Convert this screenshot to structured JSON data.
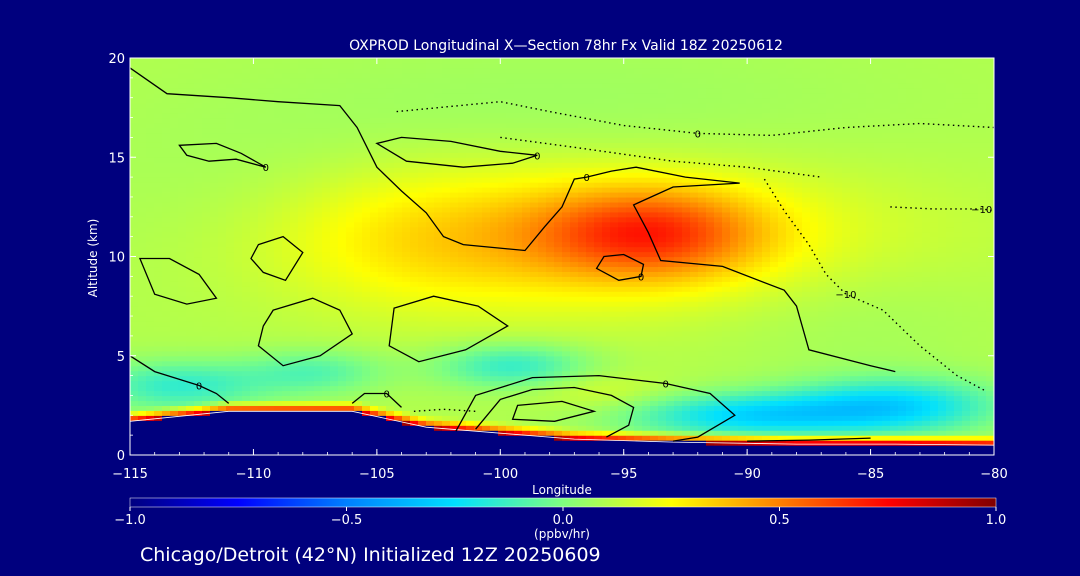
{
  "chart_data": {
    "type": "heatmap",
    "title": "OXPROD Longitudinal X—Section 78hr  Fx Valid 18Z 20250612",
    "xlabel": "Longitude",
    "ylabel": "Altitude (km)",
    "xlim": [
      -115,
      -80
    ],
    "ylim": [
      0,
      20
    ],
    "x_ticks": [
      -115,
      -110,
      -105,
      -100,
      -95,
      -90,
      -85,
      -80
    ],
    "x_tick_labels": [
      "−115",
      "−110",
      "−105",
      "−100",
      "−95",
      "−90",
      "−85",
      "−80"
    ],
    "y_ticks": [
      0,
      5,
      10,
      15,
      20
    ],
    "y_tick_labels": [
      "0",
      "5",
      "10",
      "15",
      "20"
    ],
    "colorbar": {
      "range": [
        -1.0,
        1.0
      ],
      "ticks": [
        -1.0,
        -0.5,
        0.0,
        0.5,
        1.0
      ],
      "tick_labels": [
        "−1.0",
        "−0.5",
        "0.0",
        "0.5",
        "1.0"
      ],
      "units": "(ppbv/hr)",
      "colormap": [
        "#00007f",
        "#0000ff",
        "#0080ff",
        "#00e0ff",
        "#7fff7f",
        "#ffff00",
        "#ff8000",
        "#ff0000",
        "#800000"
      ]
    },
    "background_value": 0.1,
    "value_blobs": [
      {
        "lon": -94.0,
        "alt": 11.2,
        "slon": 3.2,
        "salt": 1.6,
        "amp": 0.42
      },
      {
        "lon": -96.5,
        "alt": 11.0,
        "slon": 8.5,
        "salt": 2.6,
        "amp": 0.2
      },
      {
        "lon": -103.0,
        "alt": 11.0,
        "slon": 4.0,
        "salt": 2.5,
        "amp": 0.12
      },
      {
        "lon": -108.0,
        "alt": 12.5,
        "slon": 7.0,
        "salt": 3.0,
        "amp": -0.04
      },
      {
        "lon": -97.0,
        "alt": 17.5,
        "slon": 10.0,
        "salt": 2.5,
        "amp": -0.04
      },
      {
        "lon": -90.0,
        "alt": 2.0,
        "slon": 3.5,
        "salt": 0.8,
        "amp": -0.35
      },
      {
        "lon": -84.0,
        "alt": 2.5,
        "slon": 3.0,
        "salt": 1.0,
        "amp": -0.35
      },
      {
        "lon": -99.5,
        "alt": 4.5,
        "slon": 2.2,
        "salt": 0.8,
        "amp": -0.25
      },
      {
        "lon": -113.0,
        "alt": 3.5,
        "slon": 2.5,
        "salt": 0.9,
        "amp": -0.25
      },
      {
        "lon": -107.5,
        "alt": 4.2,
        "slon": 2.0,
        "salt": 0.8,
        "amp": -0.18
      },
      {
        "lon": -96.0,
        "alt": 3.2,
        "slon": 2.0,
        "salt": 0.7,
        "amp": 0.08
      },
      {
        "lon": -86.0,
        "alt": 7.5,
        "slon": 4.0,
        "salt": 2.5,
        "amp": -0.04
      }
    ],
    "surface_layer_value": 0.95,
    "terrain_km": [
      [
        -115,
        1.7
      ],
      [
        -111,
        2.2
      ],
      [
        -106,
        2.2
      ],
      [
        -103,
        1.4
      ],
      [
        -100,
        1.1
      ],
      [
        -97,
        0.8
      ],
      [
        -93,
        0.65
      ],
      [
        -88,
        0.55
      ],
      [
        -84,
        0.55
      ],
      [
        -80,
        0.5
      ]
    ],
    "contours": [
      {
        "label": "0",
        "style": "solid",
        "closed": false,
        "points": [
          [
            -115,
            19.5
          ],
          [
            -113.5,
            18.2
          ],
          [
            -111,
            18
          ],
          [
            -109,
            17.8
          ],
          [
            -106.5,
            17.6
          ],
          [
            -105.8,
            16.5
          ],
          [
            -105,
            14.5
          ],
          [
            -104,
            13.3
          ],
          [
            -103,
            12.2
          ],
          [
            -102.3,
            11
          ],
          [
            -101.5,
            10.6
          ],
          [
            -99,
            10.3
          ],
          [
            -98.2,
            11.5
          ],
          [
            -97.5,
            12.5
          ],
          [
            -97,
            13.9
          ],
          [
            -96.5,
            14
          ],
          [
            -95.5,
            14.3
          ],
          [
            -94.5,
            14.5
          ],
          [
            -92.5,
            14
          ],
          [
            -90.3,
            13.7
          ],
          [
            -93,
            13.5
          ],
          [
            -94.6,
            12.6
          ],
          [
            -94,
            11.2
          ],
          [
            -93.5,
            9.8
          ],
          [
            -91,
            9.5
          ],
          [
            -88.5,
            8.3
          ],
          [
            -88,
            7.5
          ],
          [
            -87.5,
            5.3
          ],
          [
            -85,
            4.5
          ],
          [
            -84,
            4.2
          ]
        ]
      },
      {
        "label": "0",
        "style": "solid",
        "closed": true,
        "points": [
          [
            -113,
            15.6
          ],
          [
            -111.5,
            15.7
          ],
          [
            -110.5,
            15.2
          ],
          [
            -109.5,
            14.5
          ],
          [
            -110.7,
            14.9
          ],
          [
            -111.8,
            14.8
          ],
          [
            -112.7,
            15.1
          ]
        ]
      },
      {
        "label": "0",
        "style": "solid",
        "closed": true,
        "points": [
          [
            -105,
            15.7
          ],
          [
            -104,
            16
          ],
          [
            -102,
            15.8
          ],
          [
            -100,
            15.3
          ],
          [
            -98.5,
            15.1
          ],
          [
            -99.5,
            14.7
          ],
          [
            -101.5,
            14.5
          ],
          [
            -103.8,
            14.8
          ]
        ]
      },
      {
        "label": "",
        "style": "solid",
        "closed": true,
        "points": [
          [
            -109.8,
            10.6
          ],
          [
            -108.8,
            11
          ],
          [
            -108,
            10.2
          ],
          [
            -108.7,
            8.8
          ],
          [
            -109.6,
            9.2
          ],
          [
            -110.1,
            9.9
          ]
        ]
      },
      {
        "label": "",
        "style": "solid",
        "closed": true,
        "points": [
          [
            -114.6,
            9.9
          ],
          [
            -114,
            8.1
          ],
          [
            -112.7,
            7.6
          ],
          [
            -111.5,
            7.9
          ],
          [
            -112.2,
            9.1
          ],
          [
            -113.4,
            9.9
          ]
        ]
      },
      {
        "label": "",
        "style": "solid",
        "closed": true,
        "points": [
          [
            -109.2,
            7.3
          ],
          [
            -107.6,
            7.9
          ],
          [
            -106.5,
            7.3
          ],
          [
            -106,
            6.1
          ],
          [
            -107.3,
            5
          ],
          [
            -108.8,
            4.5
          ],
          [
            -109.8,
            5.5
          ],
          [
            -109.6,
            6.5
          ]
        ]
      },
      {
        "label": "",
        "style": "solid",
        "closed": true,
        "points": [
          [
            -104.3,
            7.4
          ],
          [
            -102.7,
            8
          ],
          [
            -100.9,
            7.5
          ],
          [
            -99.7,
            6.5
          ],
          [
            -101.4,
            5.3
          ],
          [
            -103.3,
            4.7
          ],
          [
            -104.5,
            5.5
          ]
        ]
      },
      {
        "label": "0",
        "style": "solid",
        "closed": true,
        "points": [
          [
            -95.8,
            10
          ],
          [
            -95,
            10.1
          ],
          [
            -94.2,
            9.6
          ],
          [
            -94.3,
            9
          ],
          [
            -95.2,
            8.8
          ],
          [
            -96.1,
            9.4
          ]
        ]
      },
      {
        "label": "0",
        "style": "solid",
        "closed": false,
        "points": [
          [
            -115,
            5
          ],
          [
            -114,
            4.2
          ],
          [
            -112.2,
            3.5
          ],
          [
            -111.5,
            3.1
          ],
          [
            -111,
            2.6
          ]
        ]
      },
      {
        "label": "0",
        "style": "solid",
        "closed": false,
        "points": [
          [
            -106,
            2.6
          ],
          [
            -105.5,
            3.1
          ],
          [
            -104.6,
            3.1
          ],
          [
            -104,
            2.4
          ]
        ]
      },
      {
        "label": "",
        "style": "solid",
        "closed": true,
        "points": [
          [
            -99.3,
            2.5
          ],
          [
            -97.5,
            2.7
          ],
          [
            -96.2,
            2.2
          ],
          [
            -97.8,
            1.7
          ],
          [
            -99.5,
            1.8
          ]
        ]
      },
      {
        "label": "",
        "style": "solid",
        "closed": false,
        "points": [
          [
            -101,
            1.3
          ],
          [
            -100,
            2.8
          ],
          [
            -98.7,
            3.3
          ],
          [
            -97,
            3.4
          ],
          [
            -95.5,
            3
          ],
          [
            -94.6,
            2.4
          ],
          [
            -94.8,
            1.5
          ],
          [
            -95.7,
            0.9
          ]
        ]
      },
      {
        "label": "0",
        "style": "solid",
        "closed": false,
        "points": [
          [
            -101.8,
            1.2
          ],
          [
            -101,
            3
          ],
          [
            -98.7,
            3.9
          ],
          [
            -96,
            4
          ],
          [
            -93.3,
            3.6
          ],
          [
            -91.5,
            3.1
          ],
          [
            -90.5,
            2
          ],
          [
            -92,
            0.9
          ],
          [
            -93,
            0.7
          ]
        ]
      },
      {
        "label": "",
        "style": "solid",
        "closed": false,
        "points": [
          [
            -90,
            0.7
          ],
          [
            -87.5,
            0.75
          ],
          [
            -85,
            0.85
          ]
        ]
      },
      {
        "label": "0",
        "style": "dotted",
        "closed": false,
        "points": [
          [
            -104.2,
            17.3
          ],
          [
            -102.5,
            17.5
          ],
          [
            -100,
            17.8
          ],
          [
            -98,
            17.3
          ],
          [
            -95,
            16.6
          ],
          [
            -92,
            16.2
          ],
          [
            -89,
            16.1
          ],
          [
            -86,
            16.5
          ],
          [
            -83,
            16.7
          ],
          [
            -80,
            16.5
          ]
        ]
      },
      {
        "label": "",
        "style": "dotted",
        "closed": false,
        "points": [
          [
            -100,
            16
          ],
          [
            -97,
            15.5
          ],
          [
            -93,
            14.8
          ],
          [
            -90,
            14.5
          ],
          [
            -87,
            14
          ]
        ]
      },
      {
        "label": "−10",
        "style": "dotted",
        "closed": false,
        "points": [
          [
            -89.3,
            13.9
          ],
          [
            -88.5,
            12.3
          ],
          [
            -87.5,
            10.6
          ],
          [
            -86.8,
            9.1
          ],
          [
            -86,
            8.1
          ],
          [
            -84.5,
            7.3
          ],
          [
            -83,
            5.5
          ],
          [
            -81.5,
            4
          ],
          [
            -80.3,
            3.2
          ]
        ]
      },
      {
        "label": "−10",
        "style": "dotted",
        "closed": false,
        "points": [
          [
            -84.2,
            12.5
          ],
          [
            -82.5,
            12.4
          ],
          [
            -80.5,
            12.4
          ],
          [
            -80,
            12.3
          ]
        ]
      },
      {
        "label": "",
        "style": "dotted",
        "closed": false,
        "points": [
          [
            -103.5,
            2.2
          ],
          [
            -102.3,
            2.3
          ],
          [
            -101,
            2.2
          ]
        ]
      }
    ]
  },
  "footer": {
    "location_text": "Chicago/Detroit (42°N) Initialized 12Z 20250609"
  }
}
